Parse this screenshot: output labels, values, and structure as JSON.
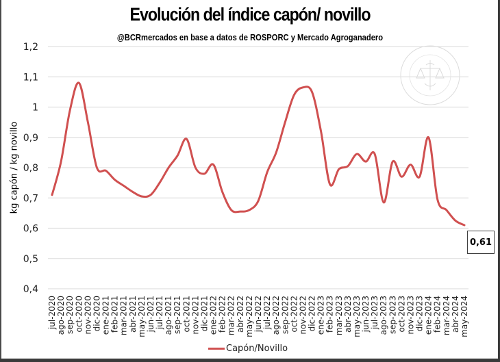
{
  "chart_data": {
    "type": "line",
    "title": "Evolución del índice capón/ novillo",
    "subtitle": "@BCRmercados  en base a datos de ROSPORC y Mercado Agroganadero",
    "xlabel": "",
    "ylabel": "kg capón / kg novillo",
    "ylim": [
      0.4,
      1.2
    ],
    "yticks": [
      "0,4",
      "0,5",
      "0,6",
      "0,7",
      "0,8",
      "0,9",
      "1",
      "1,1",
      "1,2"
    ],
    "ytick_values": [
      0.4,
      0.5,
      0.6,
      0.7,
      0.8,
      0.9,
      1.0,
      1.1,
      1.2
    ],
    "grid": true,
    "legend": "bottom",
    "categories": [
      "jul-2020",
      "ago-2020",
      "sep-2020",
      "oct-2020",
      "nov-2020",
      "dic-2020",
      "ene-2021",
      "feb-2021",
      "mar-2021",
      "abr-2021",
      "may-2021",
      "jun-2021",
      "jul-2021",
      "ago-2021",
      "sep-2021",
      "oct-2021",
      "nov-2021",
      "dic-2021",
      "ene-2022",
      "feb-2022",
      "mar-2022",
      "abr-2022",
      "may-2022",
      "jun-2022",
      "jul-2022",
      "ago-2022",
      "sep-2022",
      "oct-2022",
      "nov-2022",
      "dic-2022",
      "ene-2023",
      "feb-2023",
      "mar-2023",
      "abr-2023",
      "may-2023",
      "jun-2023",
      "jul-2023",
      "ago-2023",
      "sep-2023",
      "oct-2023",
      "nov-2023",
      "dic-2023",
      "ene-2024",
      "feb-2024",
      "mar-2024",
      "abr-2024",
      "may-2024"
    ],
    "series": [
      {
        "name": "Capón/Novillo",
        "color": "#d05050",
        "values": [
          0.71,
          0.82,
          0.99,
          1.08,
          0.95,
          0.8,
          0.79,
          0.76,
          0.74,
          0.72,
          0.705,
          0.71,
          0.75,
          0.8,
          0.84,
          0.895,
          0.8,
          0.78,
          0.81,
          0.72,
          0.66,
          0.655,
          0.66,
          0.69,
          0.785,
          0.85,
          0.95,
          1.04,
          1.065,
          1.05,
          0.92,
          0.745,
          0.795,
          0.805,
          0.845,
          0.82,
          0.845,
          0.685,
          0.82,
          0.77,
          0.81,
          0.77,
          0.9,
          0.695,
          0.66,
          0.625,
          0.61
        ]
      }
    ],
    "annotations": [
      {
        "text": "0,61",
        "target": "may-2024",
        "style": "boxed-label"
      }
    ],
    "watermark": "BOLSA DE COMERCIO DE ROSARIO"
  }
}
